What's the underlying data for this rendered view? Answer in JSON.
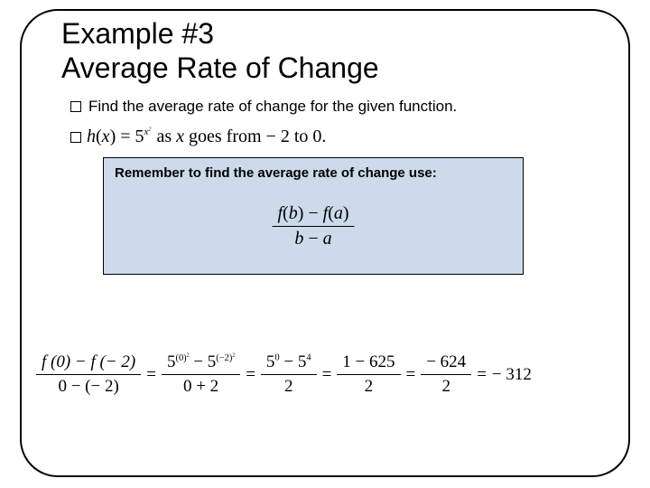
{
  "colors": {
    "background": "#ffffff",
    "text": "#000000",
    "frame_border": "#000000",
    "callout_bg": "#ccdaea",
    "callout_border": "#000000"
  },
  "layout": {
    "slide_width": 720,
    "slide_height": 540,
    "frame_radius": 42
  },
  "typography": {
    "title_fontsize": 32,
    "body_fontsize": 17,
    "math_font": "Times New Roman",
    "body_font": "Arial"
  },
  "title": {
    "line1": "Example #3",
    "line2": "Average Rate of Change"
  },
  "bullets": {
    "find_text": "Find the average rate of change for the given function.",
    "function": {
      "name": "h",
      "arg": "x",
      "base": "5",
      "exponent_var": "x",
      "exponent_power": "2",
      "tail": " as ",
      "var_again": "x",
      "tail2": " goes from − 2 to 0.",
      "combined_tail": " as x goes from − 2 to  0."
    }
  },
  "callout": {
    "remember_text": "Remember to find the average rate of change use:",
    "formula": {
      "num_left": "f",
      "num_lp": "(",
      "num_b": "b",
      "num_rp": ")",
      "num_minus": " − ",
      "num_right": "f",
      "num_lp2": "(",
      "num_a": "a",
      "num_rp2": ")",
      "den_b": "b",
      "den_minus": " − ",
      "den_a": "a"
    }
  },
  "work": {
    "lhs": {
      "num": "f (0) − f (− 2)",
      "den": "0 − (− 2)"
    },
    "step1": {
      "num_prefix": "5",
      "num_exp1": "(0)",
      "num_exp1_pow": "2",
      "num_mid": " − 5",
      "num_exp2": "(−2)",
      "num_exp2_pow": "2",
      "den": "0 + 2"
    },
    "step2": {
      "num": "5⁰ − 5⁴",
      "num_plain_a": "5",
      "num_sup_a": "0",
      "num_mid": " − 5",
      "num_sup_b": "4",
      "den": "2"
    },
    "step3": {
      "num": "1 − 625",
      "den": "2"
    },
    "step4": {
      "num": "− 624",
      "den": "2"
    },
    "result": "− 312",
    "eq": "="
  }
}
